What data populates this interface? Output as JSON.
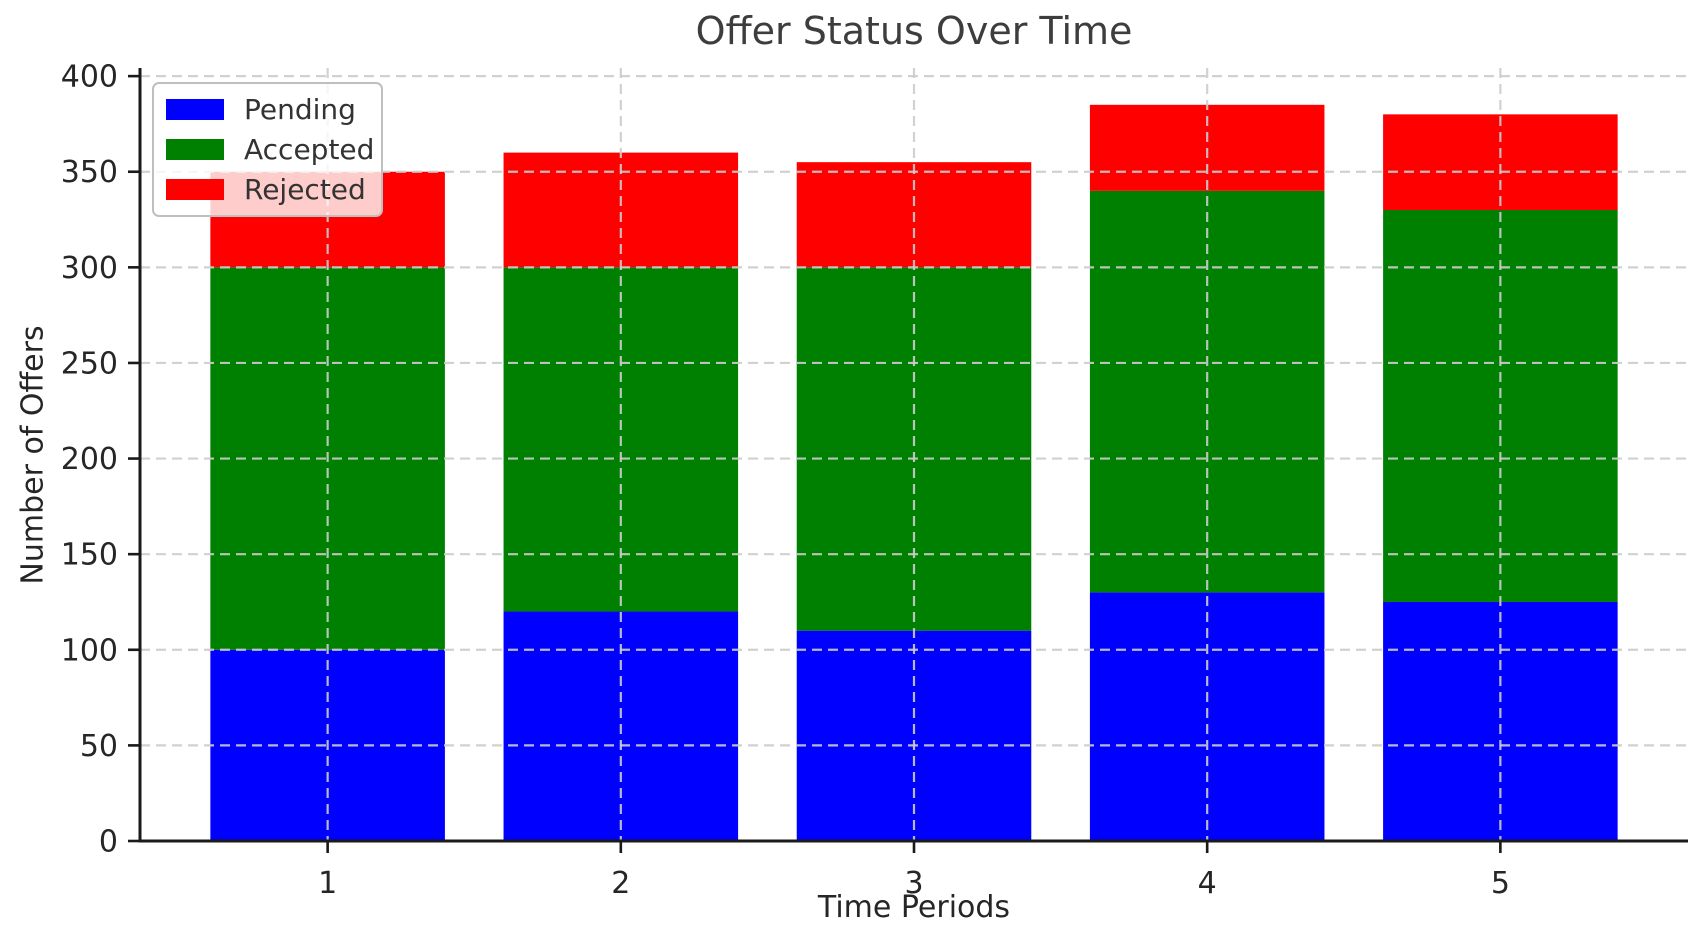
{
  "chart_data": {
    "type": "bar",
    "stacked": true,
    "title": "Offer Status Over Time",
    "xlabel": "Time Periods",
    "ylabel": "Number of Offers",
    "categories": [
      "1",
      "2",
      "3",
      "4",
      "5"
    ],
    "series": [
      {
        "name": "Pending",
        "color": "#0000ff",
        "values": [
          100,
          120,
          110,
          130,
          125
        ]
      },
      {
        "name": "Accepted",
        "color": "#008000",
        "values": [
          200,
          180,
          190,
          210,
          205
        ]
      },
      {
        "name": "Rejected",
        "color": "#ff0000",
        "values": [
          50,
          60,
          55,
          45,
          50
        ]
      }
    ],
    "totals": [
      350,
      360,
      355,
      385,
      380
    ],
    "ylim": [
      0,
      400
    ],
    "yticks": [
      0,
      50,
      100,
      150,
      200,
      250,
      300,
      350,
      400
    ],
    "bar_width": 0.8,
    "grid": {
      "style": "dashed",
      "axes": "both",
      "on_top_of_bars": true
    },
    "legend": {
      "position": "upper-left",
      "entries": [
        "Pending",
        "Accepted",
        "Rejected"
      ]
    }
  },
  "style": {
    "background": "#ffffff",
    "grid_color": "#cccccc",
    "spine_color": "#1a1a1a",
    "tick_text_color": "#262626",
    "title_color": "#3d3d3d",
    "legend_text_color": "#333333",
    "legend_border": "#bfbfbf",
    "legend_bg": "rgba(255,255,255,0.8)"
  }
}
